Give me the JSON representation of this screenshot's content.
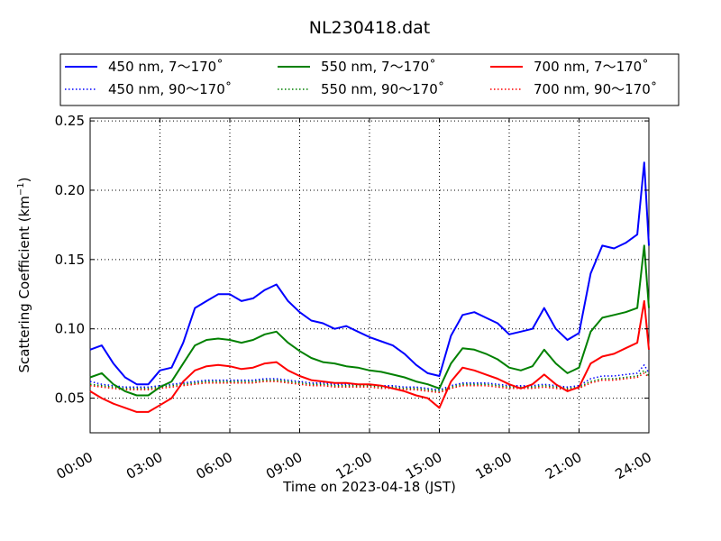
{
  "chart_data": {
    "type": "line",
    "title": "NL230418.dat",
    "xlabel": "Time on 2023-04-18 (JST)",
    "ylabel_main": "Scattering Coefficient (km",
    "ylabel_sup": "−1",
    "ylabel_end": ")",
    "xlim": [
      0,
      24
    ],
    "ylim": [
      0.025,
      0.252
    ],
    "grid": true,
    "legend_position": "top",
    "x_tick_values": [
      0,
      3,
      6,
      9,
      12,
      15,
      18,
      21,
      24
    ],
    "x_tick_labels": [
      "00:00",
      "03:00",
      "06:00",
      "09:00",
      "12:00",
      "15:00",
      "18:00",
      "21:00",
      "24:00"
    ],
    "y_tick_values": [
      0.05,
      0.1,
      0.15,
      0.2,
      0.25
    ],
    "y_tick_labels": [
      "0.05",
      "0.10",
      "0.15",
      "0.20",
      "0.25"
    ],
    "x_hours": [
      0,
      0.5,
      1,
      1.5,
      2,
      2.5,
      3,
      3.5,
      4,
      4.5,
      5,
      5.5,
      6,
      6.5,
      7,
      7.5,
      8,
      8.5,
      9,
      9.5,
      10,
      10.5,
      11,
      11.5,
      12,
      12.5,
      13,
      13.5,
      14,
      14.5,
      15,
      15.5,
      16,
      16.5,
      17,
      17.5,
      18,
      18.5,
      19,
      19.5,
      20,
      20.5,
      21,
      21.5,
      22,
      22.5,
      23,
      23.5,
      23.8,
      24
    ],
    "series": [
      {
        "name": "450 nm, 7～170˚",
        "color": "#0000ff",
        "style": "solid",
        "values": [
          0.085,
          0.088,
          0.075,
          0.065,
          0.06,
          0.06,
          0.07,
          0.072,
          0.09,
          0.115,
          0.12,
          0.125,
          0.125,
          0.12,
          0.122,
          0.128,
          0.132,
          0.12,
          0.112,
          0.106,
          0.104,
          0.1,
          0.102,
          0.098,
          0.094,
          0.091,
          0.088,
          0.082,
          0.074,
          0.068,
          0.066,
          0.095,
          0.11,
          0.112,
          0.108,
          0.104,
          0.096,
          0.098,
          0.1,
          0.115,
          0.1,
          0.092,
          0.097,
          0.14,
          0.16,
          0.158,
          0.162,
          0.168,
          0.22,
          0.16
        ]
      },
      {
        "name": "550 nm, 7～170˚",
        "color": "#008000",
        "style": "solid",
        "values": [
          0.065,
          0.068,
          0.06,
          0.055,
          0.052,
          0.052,
          0.058,
          0.062,
          0.075,
          0.088,
          0.092,
          0.093,
          0.092,
          0.09,
          0.092,
          0.096,
          0.098,
          0.09,
          0.084,
          0.079,
          0.076,
          0.075,
          0.073,
          0.072,
          0.07,
          0.069,
          0.067,
          0.065,
          0.062,
          0.06,
          0.057,
          0.075,
          0.086,
          0.085,
          0.082,
          0.078,
          0.072,
          0.07,
          0.073,
          0.085,
          0.075,
          0.068,
          0.072,
          0.098,
          0.108,
          0.11,
          0.112,
          0.115,
          0.16,
          0.115
        ]
      },
      {
        "name": "700 nm, 7～170˚",
        "color": "#ff0000",
        "style": "solid",
        "values": [
          0.055,
          0.05,
          0.046,
          0.043,
          0.04,
          0.04,
          0.045,
          0.05,
          0.062,
          0.07,
          0.073,
          0.074,
          0.073,
          0.071,
          0.072,
          0.075,
          0.076,
          0.07,
          0.066,
          0.063,
          0.062,
          0.061,
          0.061,
          0.06,
          0.06,
          0.059,
          0.057,
          0.055,
          0.052,
          0.05,
          0.043,
          0.062,
          0.072,
          0.07,
          0.067,
          0.064,
          0.06,
          0.057,
          0.06,
          0.067,
          0.06,
          0.055,
          0.058,
          0.075,
          0.08,
          0.082,
          0.086,
          0.09,
          0.12,
          0.085
        ]
      },
      {
        "name": "450 nm, 90～170˚",
        "color": "#0000ff",
        "style": "dotted",
        "values": [
          0.062,
          0.06,
          0.059,
          0.058,
          0.058,
          0.058,
          0.059,
          0.06,
          0.061,
          0.062,
          0.063,
          0.063,
          0.063,
          0.063,
          0.063,
          0.064,
          0.064,
          0.063,
          0.062,
          0.061,
          0.061,
          0.06,
          0.06,
          0.06,
          0.06,
          0.059,
          0.059,
          0.058,
          0.058,
          0.057,
          0.056,
          0.059,
          0.061,
          0.061,
          0.061,
          0.06,
          0.059,
          0.059,
          0.059,
          0.06,
          0.059,
          0.058,
          0.059,
          0.064,
          0.066,
          0.066,
          0.067,
          0.068,
          0.074,
          0.068
        ]
      },
      {
        "name": "550 nm, 90～170˚",
        "color": "#008000",
        "style": "dotted",
        "values": [
          0.06,
          0.059,
          0.058,
          0.057,
          0.057,
          0.057,
          0.058,
          0.059,
          0.06,
          0.061,
          0.062,
          0.062,
          0.062,
          0.062,
          0.062,
          0.063,
          0.063,
          0.062,
          0.061,
          0.06,
          0.06,
          0.059,
          0.059,
          0.059,
          0.059,
          0.058,
          0.058,
          0.057,
          0.057,
          0.056,
          0.055,
          0.058,
          0.06,
          0.06,
          0.06,
          0.059,
          0.058,
          0.058,
          0.058,
          0.059,
          0.058,
          0.057,
          0.058,
          0.062,
          0.064,
          0.064,
          0.065,
          0.066,
          0.07,
          0.066
        ]
      },
      {
        "name": "700 nm, 90～170˚",
        "color": "#ff0000",
        "style": "dotted",
        "values": [
          0.059,
          0.058,
          0.057,
          0.056,
          0.056,
          0.056,
          0.057,
          0.058,
          0.059,
          0.06,
          0.061,
          0.061,
          0.061,
          0.061,
          0.061,
          0.062,
          0.062,
          0.061,
          0.06,
          0.059,
          0.059,
          0.058,
          0.058,
          0.058,
          0.058,
          0.057,
          0.057,
          0.056,
          0.056,
          0.055,
          0.054,
          0.057,
          0.059,
          0.059,
          0.059,
          0.058,
          0.057,
          0.057,
          0.057,
          0.058,
          0.057,
          0.056,
          0.057,
          0.061,
          0.063,
          0.063,
          0.064,
          0.065,
          0.068,
          0.065
        ]
      }
    ],
    "legend_order": [
      0,
      1,
      2,
      3,
      4,
      5
    ]
  }
}
